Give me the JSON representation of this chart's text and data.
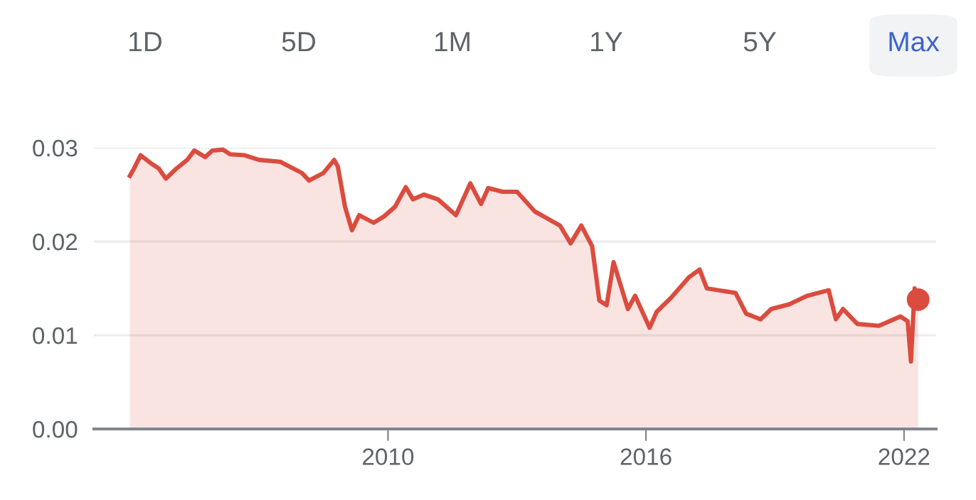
{
  "chart_data": {
    "type": "area",
    "annotations": [
      "1D",
      "5D",
      "1M",
      "1Y",
      "5Y",
      "Max"
    ],
    "series": [
      {
        "color": "#db4c3f",
        "x": [
          "2004-01",
          "2004-02",
          "2004-04",
          "2004-07",
          "2004-09",
          "2004-11",
          "2005-02",
          "2005-05",
          "2005-07",
          "2005-10",
          "2005-12",
          "2006-03",
          "2006-05",
          "2006-09",
          "2007-01",
          "2007-07",
          "2008-01",
          "2008-03",
          "2008-07",
          "2008-10",
          "2008-11",
          "2009-01",
          "2009-03",
          "2009-05",
          "2009-09",
          "2009-12",
          "2010-03",
          "2010-06",
          "2010-08",
          "2010-11",
          "2011-03",
          "2011-08",
          "2011-12",
          "2012-03",
          "2012-05",
          "2012-09",
          "2013-01",
          "2013-06",
          "2014-01",
          "2014-04",
          "2014-07",
          "2014-10",
          "2014-12",
          "2015-02",
          "2015-04",
          "2015-08",
          "2015-10",
          "2016-02",
          "2016-04",
          "2016-08",
          "2017-01",
          "2017-04",
          "2017-06",
          "2018-02",
          "2018-05",
          "2018-09",
          "2018-12",
          "2019-05",
          "2019-10",
          "2020-04",
          "2020-06",
          "2020-08",
          "2020-12",
          "2021-06",
          "2021-12",
          "2022-02",
          "2022-03",
          "2022-04",
          "2022-05"
        ],
        "values": [
          0.027,
          0.0277,
          0.0292,
          0.0283,
          0.0278,
          0.0267,
          0.0278,
          0.0287,
          0.0297,
          0.029,
          0.0297,
          0.0298,
          0.0293,
          0.0292,
          0.0287,
          0.0285,
          0.0273,
          0.0265,
          0.0273,
          0.0287,
          0.028,
          0.0237,
          0.0212,
          0.0228,
          0.022,
          0.0227,
          0.0237,
          0.0258,
          0.0245,
          0.025,
          0.0245,
          0.0228,
          0.0262,
          0.024,
          0.0257,
          0.0253,
          0.0253,
          0.0232,
          0.0217,
          0.0198,
          0.0217,
          0.0195,
          0.0137,
          0.0132,
          0.0178,
          0.0128,
          0.0142,
          0.0108,
          0.0125,
          0.014,
          0.0162,
          0.017,
          0.015,
          0.0145,
          0.0123,
          0.0117,
          0.0128,
          0.0133,
          0.0142,
          0.0148,
          0.0117,
          0.0128,
          0.0112,
          0.011,
          0.012,
          0.0115,
          0.0072,
          0.015,
          0.0138
        ]
      },
      {
        "type": "scatter",
        "marker": "circle",
        "color": "#db4c3f",
        "x": [
          "2022-05"
        ],
        "values": [
          0.0138
        ]
      }
    ],
    "xlim": [
      "2003-03",
      "2022-10"
    ],
    "xticks": [
      {
        "value": "2010-01-01",
        "label": "2010"
      },
      {
        "value": "2016-01-01",
        "label": "2016"
      },
      {
        "value": "2022-01-01",
        "label": "2022"
      }
    ],
    "ylim": [
      0,
      0.03
    ],
    "yticks": [
      {
        "value": 0,
        "label": "0.00"
      },
      {
        "value": 0.01,
        "label": "0.01"
      },
      {
        "value": 0.02,
        "label": "0.02"
      },
      {
        "value": 0.03,
        "label": "0.03"
      }
    ],
    "grid": "y",
    "marker": "none",
    "line_style": "solid",
    "legend": false
  }
}
